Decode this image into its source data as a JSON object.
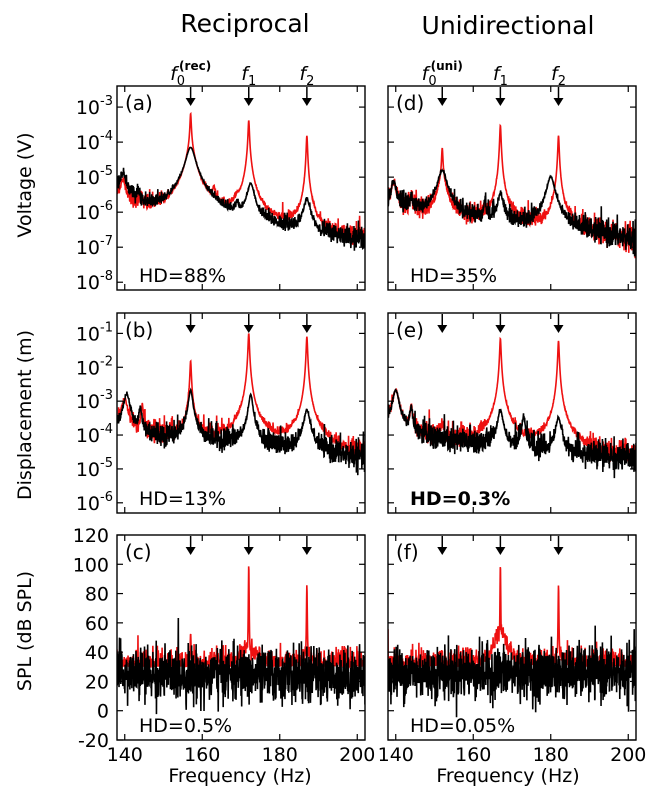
{
  "figure": {
    "column_titles": [
      "Reciprocal",
      "Unidirectional"
    ],
    "x_axis_label": "Frequency (Hz)",
    "x_ticks": [
      140,
      160,
      180,
      200
    ],
    "xlim": [
      138,
      202
    ],
    "row_ylabels": [
      "Voltage (V)",
      "Displacement (m)",
      "SPL (dB SPL)"
    ],
    "markers": {
      "reciprocal": [
        {
          "base": "f",
          "sub": "0",
          "sup": "(rec)",
          "freq": 157
        },
        {
          "base": "f",
          "sub": "1",
          "sup": "",
          "freq": 172
        },
        {
          "base": "f",
          "sub": "2",
          "sup": "",
          "freq": 187
        }
      ],
      "unidirectional": [
        {
          "base": "f",
          "sub": "0",
          "sup": "(uni)",
          "freq": 152
        },
        {
          "base": "f",
          "sub": "1",
          "sup": "",
          "freq": 167
        },
        {
          "base": "f",
          "sub": "2",
          "sup": "",
          "freq": 182
        }
      ]
    },
    "colors": {
      "red": "#ee1111",
      "black": "#000000"
    }
  },
  "chart_data": [
    {
      "type": "line",
      "panel": "(a)",
      "hd": "HD=88%",
      "hd_bold": false,
      "yscale": "log",
      "ylim": [
        6e-09,
        0.004
      ],
      "yticks": [
        1e-08,
        1e-07,
        1e-06,
        1e-05,
        0.0001,
        0.001
      ],
      "ytick_labels": [
        "10-8",
        "10-7",
        "10-6",
        "10-5",
        "10-4",
        "10-3"
      ],
      "xlim": [
        138,
        202
      ],
      "series": [
        {
          "color": "#ee1111",
          "baseline": [
            [
              138,
              2e-06
            ],
            [
              145,
              1e-06
            ],
            [
              160,
              6e-07
            ],
            [
              170,
              3e-07
            ],
            [
              180,
              2.5e-07
            ],
            [
              190,
              1.5e-07
            ],
            [
              202,
              1.2e-07
            ]
          ],
          "peaks": [
            [
              139.5,
              6e-06,
              0.8
            ],
            [
              144,
              2e-06,
              0.3
            ],
            [
              157,
              0.0006,
              0.15
            ],
            [
              157,
              6e-05,
              1.0
            ],
            [
              163,
              3e-06,
              0.3
            ],
            [
              169,
              1e-06,
              0.5
            ],
            [
              172,
              0.0004,
              0.15
            ],
            [
              172,
              2e-05,
              0.7
            ],
            [
              187,
              0.00015,
              0.15
            ],
            [
              187,
              2e-06,
              0.8
            ]
          ]
        },
        {
          "color": "#000000",
          "baseline": [
            [
              138,
              3e-06
            ],
            [
              145,
              1.2e-06
            ],
            [
              160,
              6e-07
            ],
            [
              170,
              3e-07
            ],
            [
              180,
              2.5e-07
            ],
            [
              190,
              1.5e-07
            ],
            [
              202,
              1.2e-07
            ]
          ],
          "peaks": [
            [
              139.5,
              1e-05,
              0.8
            ],
            [
              143.5,
              2e-06,
              0.3
            ],
            [
              157,
              7e-05,
              1.1
            ],
            [
              169,
              8e-07,
              0.4
            ],
            [
              172.5,
              6e-06,
              0.8
            ],
            [
              187,
              2e-06,
              0.8
            ]
          ]
        }
      ]
    },
    {
      "type": "line",
      "panel": "(b)",
      "hd": "HD=13%",
      "hd_bold": false,
      "yscale": "log",
      "ylim": [
        5e-07,
        0.4
      ],
      "yticks": [
        1e-06,
        1e-05,
        0.0001,
        0.001,
        0.01,
        0.1
      ],
      "ytick_labels": [
        "10-6",
        "10-5",
        "10-4",
        "10-3",
        "10-2",
        "10-1"
      ],
      "xlim": [
        138,
        202
      ],
      "series": [
        {
          "color": "#ee1111",
          "baseline": [
            [
              138,
              0.00015
            ],
            [
              150,
              8e-05
            ],
            [
              165,
              6e-05
            ],
            [
              180,
              4e-05
            ],
            [
              202,
              2e-05
            ]
          ],
          "peaks": [
            [
              140,
              0.001,
              0.7
            ],
            [
              144.5,
              0.0006,
              0.3
            ],
            [
              157,
              0.015,
              0.15
            ],
            [
              157,
              0.0005,
              0.8
            ],
            [
              172,
              0.1,
              0.15
            ],
            [
              172,
              0.001,
              0.8
            ],
            [
              187,
              0.08,
              0.15
            ],
            [
              187,
              0.0004,
              0.7
            ]
          ]
        },
        {
          "color": "#000000",
          "baseline": [
            [
              138,
              0.00015
            ],
            [
              150,
              8e-05
            ],
            [
              165,
              6e-05
            ],
            [
              180,
              4e-05
            ],
            [
              202,
              2e-05
            ]
          ],
          "peaks": [
            [
              140.5,
              0.0015,
              0.7
            ],
            [
              144,
              0.0005,
              0.3
            ],
            [
              157,
              0.002,
              0.5
            ],
            [
              172.5,
              0.0015,
              0.5
            ],
            [
              187,
              0.0005,
              0.7
            ]
          ]
        }
      ]
    },
    {
      "type": "line",
      "panel": "(c)",
      "hd": "HD=0.5%",
      "hd_bold": false,
      "yscale": "linear",
      "ylim": [
        -20,
        120
      ],
      "yticks": [
        -20,
        0,
        20,
        40,
        60,
        80,
        100,
        120
      ],
      "ytick_labels": [
        "-20",
        "0",
        "20",
        "40",
        "60",
        "80",
        "100",
        "120"
      ],
      "xlim": [
        138,
        202
      ],
      "series": [
        {
          "color": "#ee1111",
          "baseline": [
            [
              138,
              30
            ],
            [
              202,
              30
            ]
          ],
          "noise": 6,
          "peaks": [
            [
              157,
              53,
              0.15
            ],
            [
              172,
              100,
              0.15
            ],
            [
              172,
              45,
              2.0
            ],
            [
              187,
              86,
              0.15
            ],
            [
              187,
              40,
              1.2
            ]
          ]
        },
        {
          "color": "#000000",
          "baseline": [
            [
              138,
              25
            ],
            [
              202,
              24
            ]
          ],
          "noise": 9,
          "peaks": []
        }
      ]
    },
    {
      "type": "line",
      "panel": "(d)",
      "hd": "HD=35%",
      "hd_bold": false,
      "yscale": "log",
      "ylim": [
        6e-09,
        0.004
      ],
      "yticks": [
        1e-08,
        1e-07,
        1e-06,
        1e-05,
        0.0001,
        0.001
      ],
      "ytick_labels": [
        "10-8",
        "10-7",
        "10-6",
        "10-5",
        "10-4",
        "10-3"
      ],
      "xlim": [
        138,
        202
      ],
      "series": [
        {
          "color": "#ee1111",
          "baseline": [
            [
              138,
              1.5e-06
            ],
            [
              150,
              8e-07
            ],
            [
              165,
              5e-07
            ],
            [
              180,
              3e-07
            ],
            [
              202,
              1.5e-07
            ]
          ],
          "peaks": [
            [
              139.5,
              6e-06,
              0.6
            ],
            [
              144,
              2e-06,
              0.3
            ],
            [
              152,
              6e-05,
              0.15
            ],
            [
              152,
              8e-06,
              0.9
            ],
            [
              167,
              0.0003,
              0.15
            ],
            [
              167,
              3e-06,
              0.7
            ],
            [
              182,
              0.00015,
              0.15
            ],
            [
              182,
              3e-06,
              0.8
            ]
          ]
        },
        {
          "color": "#000000",
          "baseline": [
            [
              138,
              1.5e-06
            ],
            [
              150,
              8e-07
            ],
            [
              165,
              5e-07
            ],
            [
              180,
              3e-07
            ],
            [
              202,
              1.5e-07
            ]
          ],
          "peaks": [
            [
              139.5,
              6e-06,
              0.6
            ],
            [
              144,
              2e-06,
              0.3
            ],
            [
              152,
              1.5e-05,
              1.0
            ],
            [
              163,
              1.5e-06,
              0.3
            ],
            [
              167,
              3e-06,
              0.6
            ],
            [
              180,
              1e-05,
              0.9
            ]
          ]
        }
      ]
    },
    {
      "type": "line",
      "panel": "(e)",
      "hd": "HD=0.3%",
      "hd_bold": true,
      "yscale": "log",
      "ylim": [
        5e-07,
        0.4
      ],
      "yticks": [
        1e-06,
        1e-05,
        0.0001,
        0.001,
        0.01,
        0.1
      ],
      "ytick_labels": [
        "10-6",
        "10-5",
        "10-4",
        "10-3",
        "10-2",
        "10-1"
      ],
      "xlim": [
        138,
        202
      ],
      "series": [
        {
          "color": "#ee1111",
          "baseline": [
            [
              138,
              0.00015
            ],
            [
              150,
              7e-05
            ],
            [
              165,
              5e-05
            ],
            [
              180,
              3e-05
            ],
            [
              202,
              2e-05
            ]
          ],
          "peaks": [
            [
              140,
              0.002,
              0.7
            ],
            [
              144,
              0.0006,
              0.3
            ],
            [
              152,
              0.0001,
              0.5
            ],
            [
              167,
              0.07,
              0.15
            ],
            [
              167,
              0.001,
              0.8
            ],
            [
              182,
              0.06,
              0.15
            ],
            [
              182,
              0.0004,
              0.8
            ]
          ]
        },
        {
          "color": "#000000",
          "baseline": [
            [
              138,
              0.00015
            ],
            [
              150,
              7e-05
            ],
            [
              165,
              5e-05
            ],
            [
              180,
              3e-05
            ],
            [
              202,
              2e-05
            ]
          ],
          "peaks": [
            [
              140,
              0.002,
              0.7
            ],
            [
              144,
              0.0006,
              0.3
            ],
            [
              167,
              0.0005,
              0.6
            ],
            [
              173,
              0.0003,
              0.4
            ],
            [
              182,
              0.0003,
              0.6
            ]
          ]
        }
      ]
    },
    {
      "type": "line",
      "panel": "(f)",
      "hd": "HD=0.05%",
      "hd_bold": false,
      "yscale": "linear",
      "ylim": [
        -20,
        120
      ],
      "yticks": [
        -20,
        0,
        20,
        40,
        60,
        80,
        100,
        120
      ],
      "ytick_labels": [
        "-20",
        "0",
        "20",
        "40",
        "60",
        "80",
        "100",
        "120"
      ],
      "xlim": [
        138,
        202
      ],
      "series": [
        {
          "color": "#ee1111",
          "baseline": [
            [
              138,
              30
            ],
            [
              202,
              30
            ]
          ],
          "noise": 6,
          "peaks": [
            [
              167,
              100,
              0.15
            ],
            [
              167,
              55,
              2.2
            ],
            [
              182,
              86,
              0.15
            ],
            [
              182,
              40,
              1.2
            ]
          ]
        },
        {
          "color": "#000000",
          "baseline": [
            [
              138,
              26
            ],
            [
              202,
              26
            ]
          ],
          "noise": 9,
          "peaks": []
        }
      ]
    }
  ]
}
